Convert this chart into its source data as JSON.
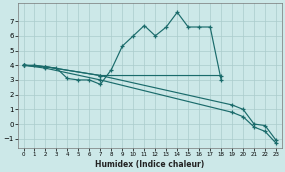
{
  "xlabel": "Humidex (Indice chaleur)",
  "bg_color": "#cce8e8",
  "grid_color": "#aacccc",
  "line_color": "#1a6b6b",
  "xlim": [
    -0.5,
    23.5
  ],
  "ylim": [
    -1.6,
    8.2
  ],
  "yticks": [
    -1,
    0,
    1,
    2,
    3,
    4,
    5,
    6,
    7
  ],
  "xticks": [
    0,
    1,
    2,
    3,
    4,
    5,
    6,
    7,
    8,
    9,
    10,
    11,
    12,
    13,
    14,
    15,
    16,
    17,
    18,
    19,
    20,
    21,
    22,
    23
  ],
  "line1_x": [
    0,
    1,
    2,
    3,
    4,
    5,
    6,
    7,
    8,
    9,
    10,
    11,
    12,
    13,
    14,
    15,
    16,
    17,
    18
  ],
  "line1_y": [
    4.0,
    4.0,
    3.9,
    3.8,
    3.1,
    3.0,
    3.0,
    2.7,
    3.7,
    5.3,
    6.0,
    6.7,
    6.0,
    6.6,
    7.6,
    6.6,
    6.6,
    6.6,
    3.0
  ],
  "line2_x": [
    0,
    2,
    7,
    18
  ],
  "line2_y": [
    4.0,
    3.9,
    3.3,
    3.3
  ],
  "line3_x": [
    0,
    2,
    7,
    19,
    20,
    21,
    22,
    23
  ],
  "line3_y": [
    4.0,
    3.9,
    3.3,
    1.3,
    1.0,
    0.0,
    -0.1,
    -1.1
  ],
  "line4_x": [
    0,
    2,
    7,
    19,
    20,
    21,
    22,
    23
  ],
  "line4_y": [
    4.0,
    3.8,
    3.0,
    0.8,
    0.5,
    -0.2,
    -0.5,
    -1.3
  ]
}
